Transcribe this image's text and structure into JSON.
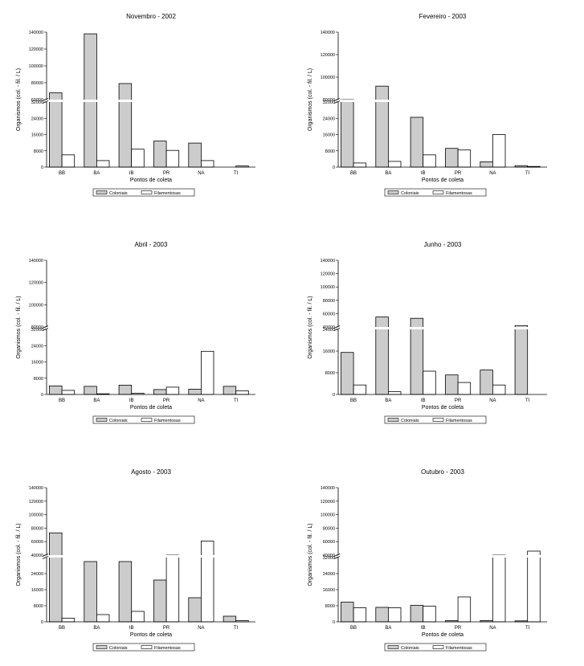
{
  "legend": {
    "series": [
      "Coloniais",
      "Filamentosas"
    ],
    "colors": [
      "#cccccc",
      "#ffffff"
    ],
    "placement": "bottom-center"
  },
  "chart_data": [
    {
      "type": "bar",
      "title": "Novembro - 2002",
      "xlabel": "Pontos de coleta",
      "ylabel": "Organismos (col. - fil. / L)",
      "categories": [
        "BB",
        "BA",
        "IB",
        "PR",
        "NA",
        "TI"
      ],
      "series": [
        {
          "name": "Coloniais",
          "values": [
            68000,
            138000,
            79000,
            12800,
            11800,
            0
          ]
        },
        {
          "name": "Filamentosas",
          "values": [
            6000,
            3200,
            8800,
            8200,
            3200,
            600
          ]
        }
      ],
      "y_break": {
        "lower_range": [
          0,
          32000
        ],
        "upper_range": [
          60000,
          140000
        ]
      },
      "yticks_lower": [
        "0",
        "8000",
        "16000",
        "24000",
        "32000"
      ],
      "yticks_upper": [
        "60000",
        "80000",
        "100000",
        "120000",
        "140000"
      ]
    },
    {
      "type": "bar",
      "title": "Fevereiro - 2003",
      "xlabel": "Pontos de coleta",
      "ylabel": "Organismos (col. - fil. / L)",
      "categories": [
        "BB",
        "BA",
        "IB",
        "PR",
        "NA",
        "TI"
      ],
      "series": [
        {
          "name": "Coloniais",
          "values": [
            33000,
            92000,
            24500,
            9200,
            2600,
            700
          ]
        },
        {
          "name": "Filamentosas",
          "values": [
            2000,
            2800,
            6000,
            8400,
            16000,
            300
          ]
        }
      ],
      "y_break": {
        "lower_range": [
          0,
          32000
        ],
        "upper_range": [
          80000,
          140000
        ]
      },
      "yticks_lower": [
        "0",
        "8000",
        "16000",
        "24000",
        "32000"
      ],
      "yticks_upper": [
        "80000",
        "100000",
        "120000",
        "140000"
      ]
    },
    {
      "type": "bar",
      "title": "Abril - 2003",
      "xlabel": "Pontos de coleta",
      "ylabel": "Organismos (col. - fil. / L)",
      "categories": [
        "BB",
        "BA",
        "IB",
        "PR",
        "NA",
        "TI"
      ],
      "series": [
        {
          "name": "Coloniais",
          "values": [
            4200,
            4000,
            4600,
            2400,
            2600,
            4000
          ]
        },
        {
          "name": "Filamentosas",
          "values": [
            2000,
            300,
            600,
            3600,
            21200,
            1800
          ]
        }
      ],
      "y_break": {
        "lower_range": [
          0,
          32000
        ],
        "upper_range": [
          80000,
          140000
        ]
      },
      "yticks_lower": [
        "0",
        "8000",
        "16000",
        "24000",
        "32000"
      ],
      "yticks_upper": [
        "80000",
        "100000",
        "120000",
        "140000"
      ]
    },
    {
      "type": "bar",
      "title": "Junho - 2003",
      "xlabel": "Pontos de coleta",
      "ylabel": "Organismos (col. - fil. / L)",
      "categories": [
        "BB",
        "BA",
        "IB",
        "PR",
        "NA",
        "TI"
      ],
      "series": [
        {
          "name": "Coloniais",
          "values": [
            15500,
            55000,
            53000,
            7200,
            9000,
            42000
          ]
        },
        {
          "name": "Filamentosas",
          "values": [
            3500,
            1000,
            8600,
            4400,
            3500,
            0
          ]
        }
      ],
      "y_break": {
        "lower_range": [
          0,
          24000
        ],
        "upper_range": [
          40000,
          140000
        ]
      },
      "yticks_lower": [
        "0",
        "8000",
        "16000",
        "24000"
      ],
      "yticks_upper": [
        "40000",
        "60000",
        "80000",
        "100000",
        "120000",
        "140000"
      ]
    },
    {
      "type": "bar",
      "title": "Agosto - 2003",
      "xlabel": "Pontos de coleta",
      "ylabel": "Organismos (col. - fil. / L)",
      "categories": [
        "BB",
        "BA",
        "IB",
        "PR",
        "NA",
        "TI"
      ],
      "series": [
        {
          "name": "Coloniais",
          "values": [
            73000,
            30000,
            30000,
            20800,
            12000,
            2800
          ]
        },
        {
          "name": "Filamentosas",
          "values": [
            1800,
            3600,
            5200,
            38000,
            61000,
            600
          ]
        }
      ],
      "y_break": {
        "lower_range": [
          0,
          32000
        ],
        "upper_range": [
          40000,
          140000
        ]
      },
      "yticks_lower": [
        "0",
        "8000",
        "16000",
        "24000"
      ],
      "yticks_upper": [
        "40000",
        "60000",
        "80000",
        "100000",
        "120000",
        "140000"
      ]
    },
    {
      "type": "bar",
      "title": "Outubro - 2003",
      "xlabel": "Pontos de coleta",
      "ylabel": "Organismos (col. - fil. / L)",
      "categories": [
        "BB",
        "BA",
        "IB",
        "PR",
        "NA",
        "TI"
      ],
      "series": [
        {
          "name": "Coloniais",
          "values": [
            9800,
            7200,
            8200,
            600,
            600,
            500
          ]
        },
        {
          "name": "Filamentosas",
          "values": [
            7000,
            7000,
            7800,
            12400,
            35000,
            46000
          ]
        }
      ],
      "y_break": {
        "lower_range": [
          0,
          32000
        ],
        "upper_range": [
          40000,
          140000
        ]
      },
      "yticks_lower": [
        "0",
        "8000",
        "16000",
        "24000",
        "32000"
      ],
      "yticks_upper": [
        "40000",
        "60000",
        "80000",
        "100000",
        "120000",
        "140000"
      ]
    }
  ]
}
